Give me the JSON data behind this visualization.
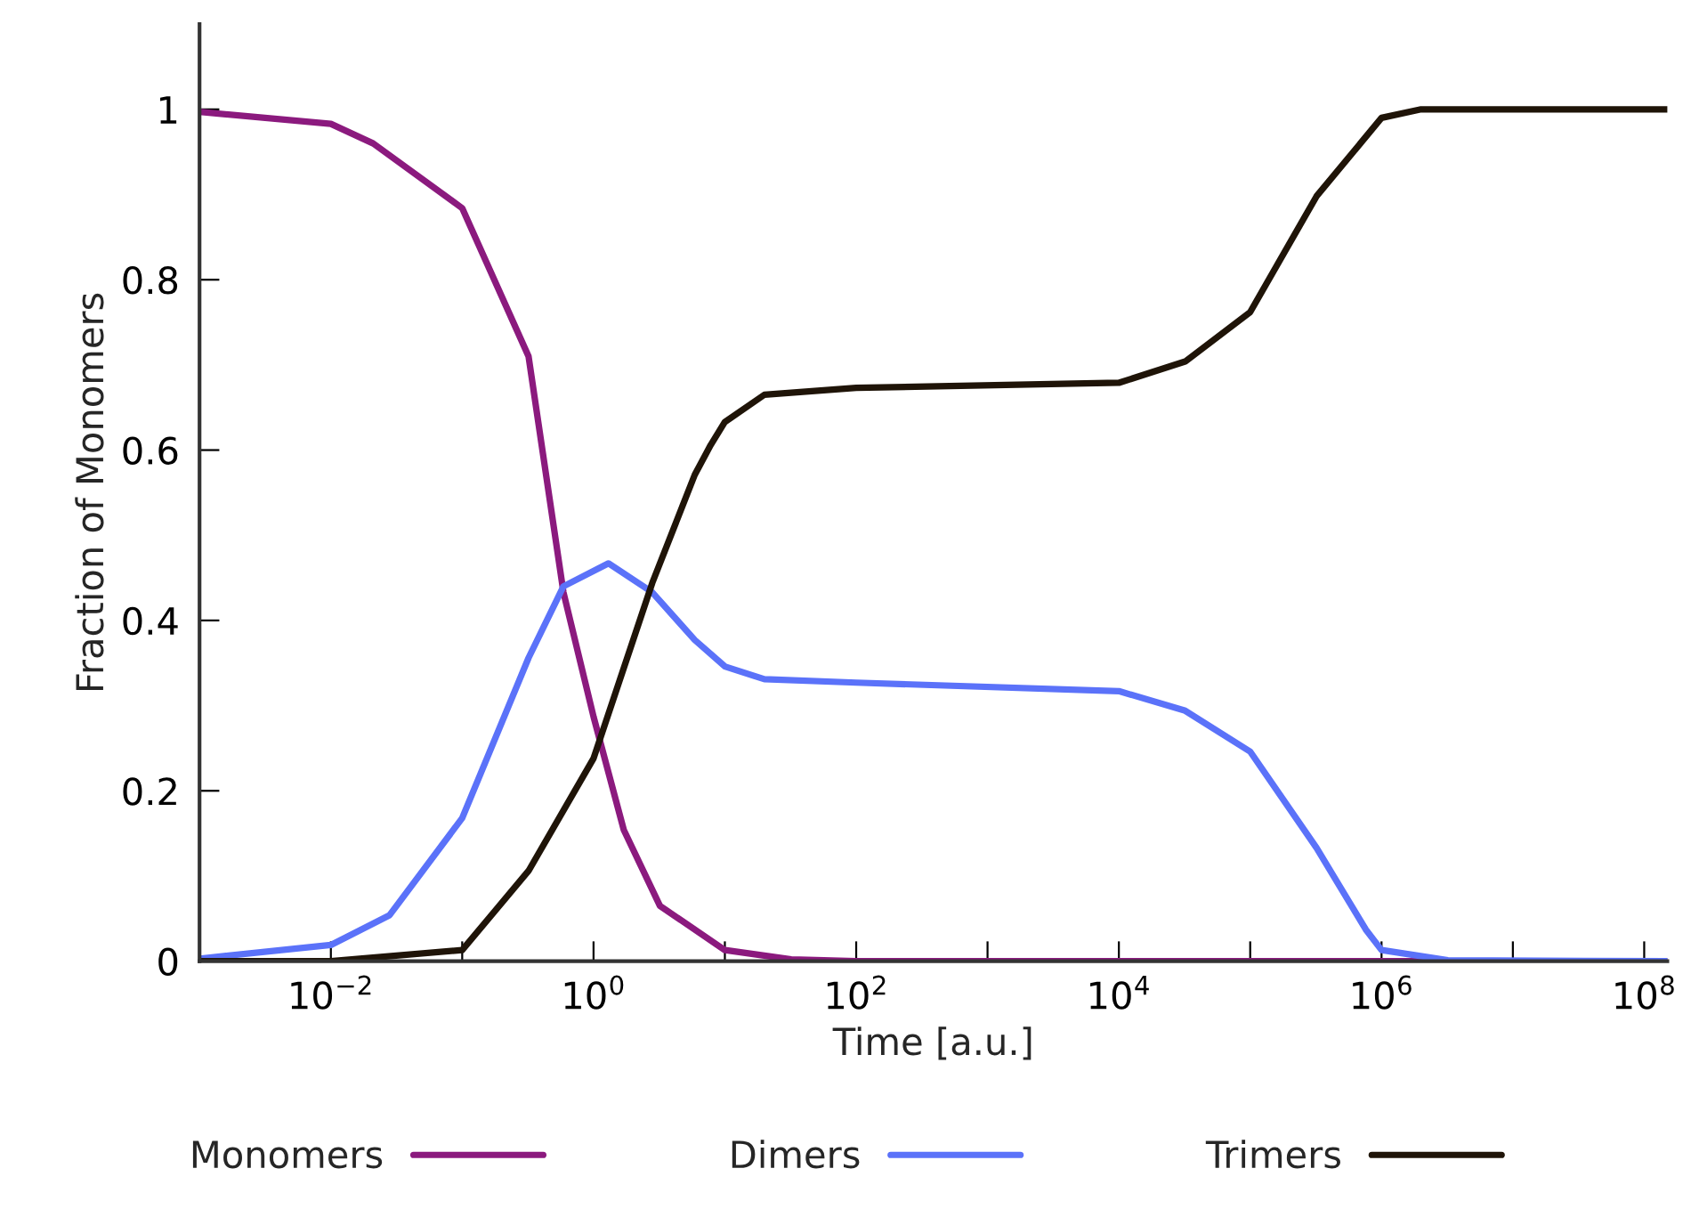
{
  "chart_data": {
    "type": "line",
    "xlabel": "Time [a.u.]",
    "ylabel": "Fraction of Monomers",
    "log": "x",
    "grid": false,
    "legend": "bottom",
    "line_style": "solid",
    "marker": "none",
    "xlim": [
      0.001,
      150000000
    ],
    "ylim": [
      0,
      1.1
    ],
    "xticks": [
      {
        "value": 0.01,
        "label": "10$^{−2}$"
      },
      {
        "value": 0.1,
        "label": null
      },
      {
        "value": 1,
        "label": "10$^{0}$"
      },
      {
        "value": 10,
        "label": null
      },
      {
        "value": 100,
        "label": "10$^{2}$"
      },
      {
        "value": 1000,
        "label": null
      },
      {
        "value": 10000,
        "label": "10$^{4}$"
      },
      {
        "value": 100000,
        "label": null
      },
      {
        "value": 1000000,
        "label": "10$^{6}$"
      },
      {
        "value": 10000000,
        "label": null
      },
      {
        "value": 100000000,
        "label": "10$^{8}$"
      }
    ],
    "yticks": [
      0,
      0.2,
      0.4,
      0.6,
      0.8,
      1
    ],
    "series": [
      {
        "name": "Monomers",
        "color": "#8b1a7e",
        "x": [
          0.001,
          0.01,
          0.021,
          0.1,
          0.32,
          0.59,
          1,
          1.7,
          3.2,
          10,
          32,
          100,
          1000000,
          150000000
        ],
        "values": [
          0.997,
          0.983,
          0.96,
          0.884,
          0.71,
          0.433,
          0.287,
          0.154,
          0.065,
          0.013,
          0.002,
          0,
          0,
          0
        ]
      },
      {
        "name": "Dimers",
        "color": "#5b72f9",
        "x": [
          0.001,
          0.01,
          0.028,
          0.1,
          0.32,
          0.59,
          1.3,
          2.8,
          5.9,
          10,
          20,
          100,
          10000,
          32000,
          100000,
          320000,
          760000,
          1000000,
          3200000,
          150000000
        ],
        "values": [
          0.003,
          0.019,
          0.054,
          0.168,
          0.356,
          0.44,
          0.467,
          0.433,
          0.377,
          0.346,
          0.331,
          0.327,
          0.317,
          0.294,
          0.246,
          0.133,
          0.037,
          0.013,
          0.001,
          0
        ]
      },
      {
        "name": "Trimers",
        "color": "#1f1408",
        "x": [
          0.001,
          0.01,
          0.1,
          0.32,
          1,
          2.8,
          5.9,
          7.8,
          10,
          20,
          100,
          10000,
          32000,
          100000,
          320000,
          1000000,
          2000000,
          150000000
        ],
        "values": [
          0,
          0,
          0.013,
          0.106,
          0.238,
          0.444,
          0.571,
          0.606,
          0.633,
          0.665,
          0.673,
          0.679,
          0.704,
          0.762,
          0.898,
          0.99,
          1,
          1
        ]
      }
    ]
  }
}
